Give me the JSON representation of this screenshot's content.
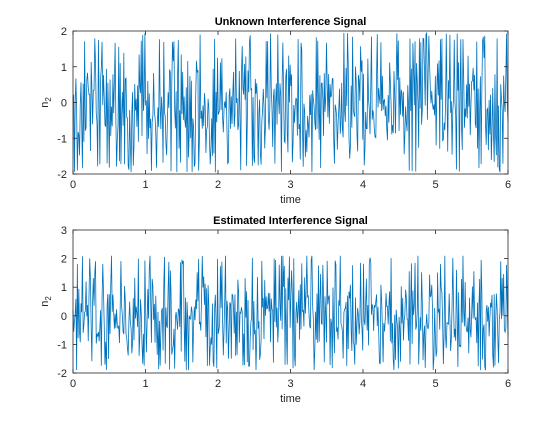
{
  "chart_data": [
    {
      "type": "line",
      "title": "Unknown Interference Signal",
      "xlabel": "time",
      "ylabel": "n",
      "ylabel_sub": "2",
      "xlim": [
        0,
        6
      ],
      "ylim": [
        -2,
        2
      ],
      "xticks": [
        0,
        1,
        2,
        3,
        4,
        5,
        6
      ],
      "yticks": [
        -2,
        -1,
        0,
        1,
        2
      ],
      "grid": false,
      "series_color": "#0072bd",
      "signal": {
        "t_start": 0,
        "t_end": 6,
        "samples": 600,
        "mean": 0.0,
        "amplitude_range": [
          -1.95,
          1.95
        ],
        "seed": 7
      }
    },
    {
      "type": "line",
      "title": "Estimated Interference Signal",
      "xlabel": "time",
      "ylabel": "n",
      "ylabel_sub": "2",
      "xlim": [
        0,
        6
      ],
      "ylim": [
        -2,
        3
      ],
      "xticks": [
        0,
        1,
        2,
        3,
        4,
        5,
        6
      ],
      "yticks": [
        -2,
        -1,
        0,
        1,
        2,
        3
      ],
      "grid": false,
      "series_color": "#0072bd",
      "signal": {
        "t_start": 0,
        "t_end": 6,
        "samples": 600,
        "mean": 0.0,
        "amplitude_range": [
          -1.9,
          2.1
        ],
        "seed": 7
      }
    }
  ]
}
